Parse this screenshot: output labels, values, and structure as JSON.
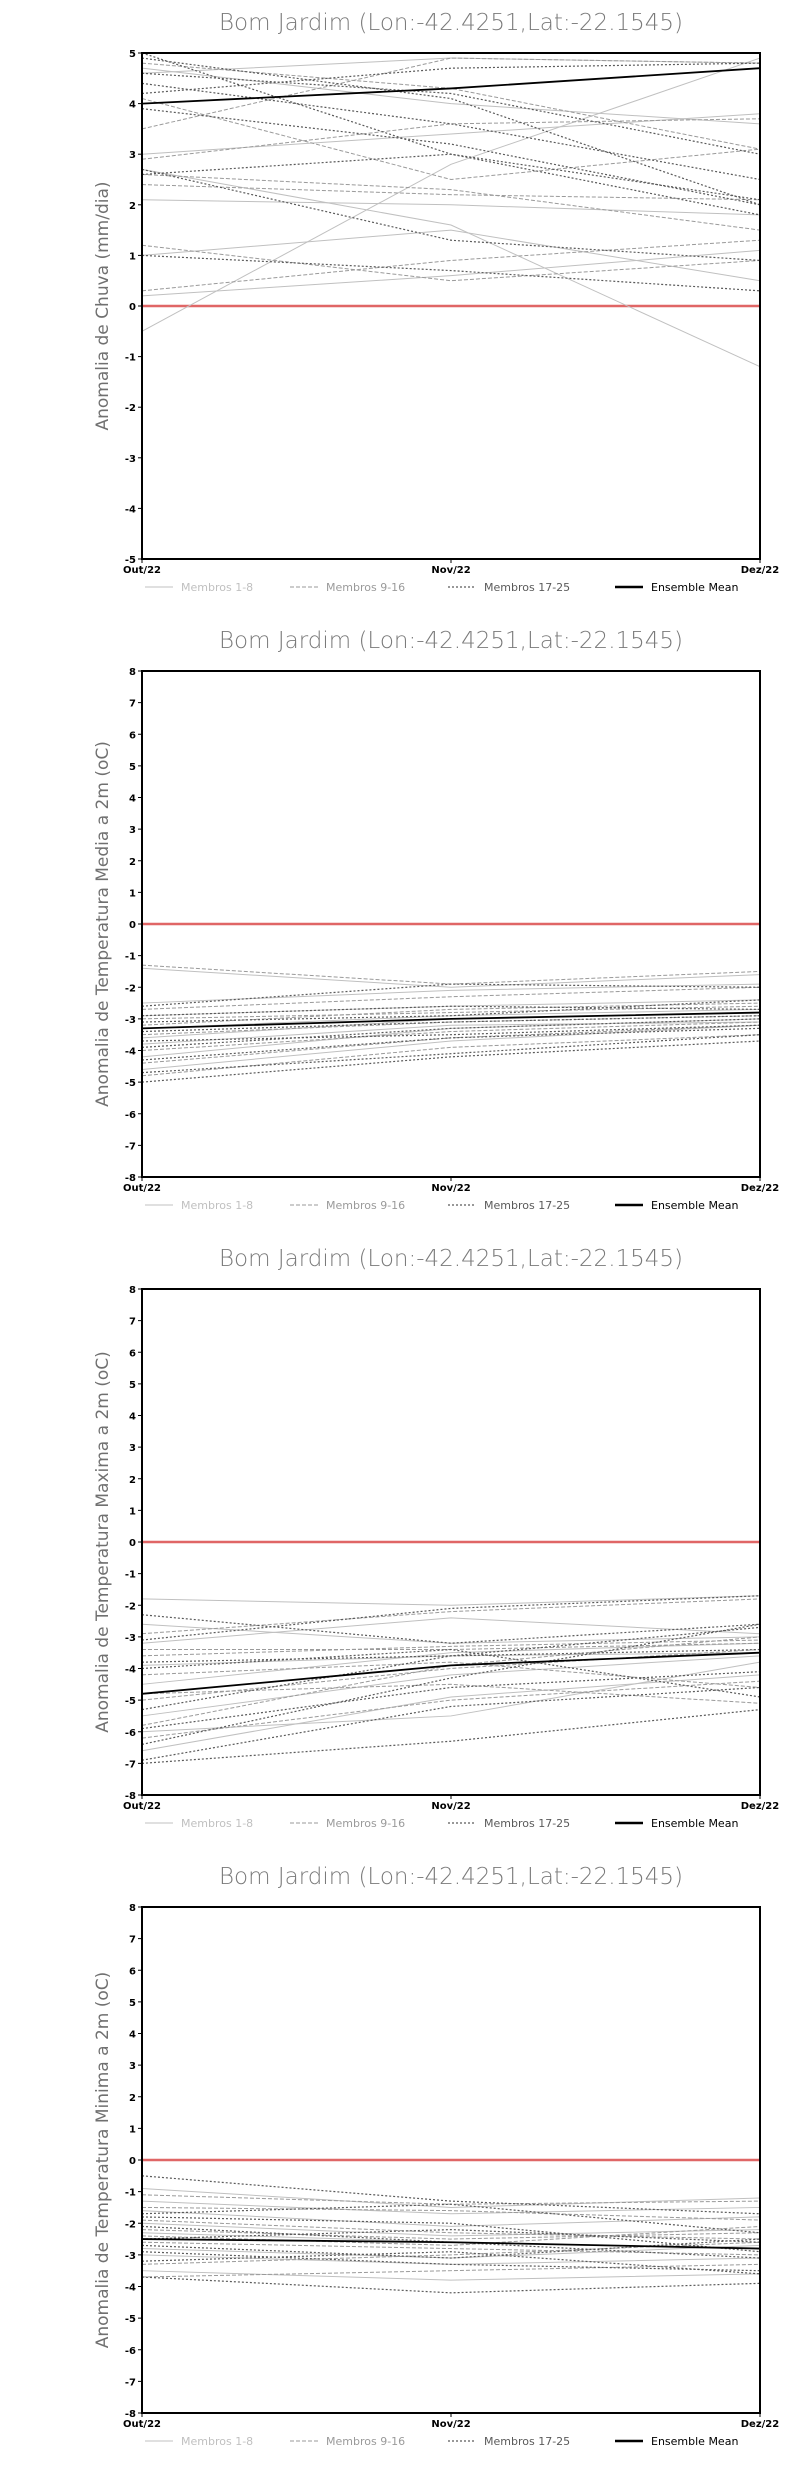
{
  "chart_data": [
    {
      "type": "line",
      "title": "Bom Jardim (Lon:-42.4251,Lat:-22.1545)",
      "ylabel": "Anomalia de Chuva (mm/dia)",
      "x": [
        "Out/22",
        "Nov/22",
        "Dez/22"
      ],
      "ylim": [
        -5,
        5
      ],
      "yticks": [
        -5,
        -4,
        -3,
        -2,
        -1,
        0,
        1,
        2,
        3,
        4,
        5
      ],
      "reference_line": 0,
      "legend": [
        "Membros 1-8",
        "Membros 9-16",
        "Membros 17-25",
        "Ensemble Mean"
      ],
      "series": [
        {
          "group": 0,
          "values": [
            0.2,
            0.6,
            1.1
          ]
        },
        {
          "group": 0,
          "values": [
            2.1,
            2.0,
            1.8
          ]
        },
        {
          "group": 0,
          "values": [
            -0.5,
            2.8,
            4.9
          ]
        },
        {
          "group": 0,
          "values": [
            4.7,
            4.0,
            3.6
          ]
        },
        {
          "group": 0,
          "values": [
            1.0,
            1.5,
            0.5
          ]
        },
        {
          "group": 0,
          "values": [
            2.7,
            1.6,
            -1.2
          ]
        },
        {
          "group": 0,
          "values": [
            4.6,
            4.9,
            4.8
          ]
        },
        {
          "group": 0,
          "values": [
            3.0,
            3.4,
            3.8
          ]
        },
        {
          "group": 1,
          "values": [
            2.4,
            2.2,
            2.1
          ]
        },
        {
          "group": 1,
          "values": [
            3.5,
            4.9,
            4.8
          ]
        },
        {
          "group": 1,
          "values": [
            1.2,
            0.5,
            0.9
          ]
        },
        {
          "group": 1,
          "values": [
            2.9,
            3.6,
            3.7
          ]
        },
        {
          "group": 1,
          "values": [
            4.8,
            4.3,
            3.1
          ]
        },
        {
          "group": 1,
          "values": [
            2.6,
            2.3,
            1.5
          ]
        },
        {
          "group": 1,
          "values": [
            0.3,
            0.9,
            1.3
          ]
        },
        {
          "group": 1,
          "values": [
            4.1,
            2.5,
            3.1
          ]
        },
        {
          "group": 2,
          "values": [
            4.9,
            4.1,
            2.0
          ]
        },
        {
          "group": 2,
          "values": [
            2.6,
            3.0,
            2.1
          ]
        },
        {
          "group": 2,
          "values": [
            1.0,
            0.7,
            0.3
          ]
        },
        {
          "group": 2,
          "values": [
            4.4,
            3.6,
            2.5
          ]
        },
        {
          "group": 2,
          "values": [
            5.0,
            3.0,
            1.8
          ]
        },
        {
          "group": 2,
          "values": [
            2.7,
            1.3,
            0.9
          ]
        },
        {
          "group": 2,
          "values": [
            3.9,
            3.2,
            2.0
          ]
        },
        {
          "group": 2,
          "values": [
            4.2,
            4.7,
            4.8
          ]
        },
        {
          "group": 2,
          "values": [
            4.6,
            4.2,
            3.0
          ]
        },
        {
          "group": 3,
          "values": [
            4.0,
            4.3,
            4.7
          ]
        }
      ]
    },
    {
      "type": "line",
      "title": "Bom Jardim (Lon:-42.4251,Lat:-22.1545)",
      "ylabel": "Anomalia de Temperatura Media a 2m (oC)",
      "x": [
        "Out/22",
        "Nov/22",
        "Dez/22"
      ],
      "ylim": [
        -8,
        8
      ],
      "yticks": [
        -8,
        -7,
        -6,
        -5,
        -4,
        -3,
        -2,
        -1,
        0,
        1,
        2,
        3,
        4,
        5,
        6,
        7,
        8
      ],
      "reference_line": 0,
      "legend": [
        "Membros 1-8",
        "Membros 9-16",
        "Membros 17-25",
        "Ensemble Mean"
      ],
      "series": [
        {
          "group": 0,
          "values": [
            -1.4,
            -2.0,
            -1.6
          ]
        },
        {
          "group": 0,
          "values": [
            -2.5,
            -2.1,
            -1.9
          ]
        },
        {
          "group": 0,
          "values": [
            -3.6,
            -3.0,
            -2.8
          ]
        },
        {
          "group": 0,
          "values": [
            -4.2,
            -3.3,
            -3.0
          ]
        },
        {
          "group": 0,
          "values": [
            -2.9,
            -2.6,
            -2.4
          ]
        },
        {
          "group": 0,
          "values": [
            -3.8,
            -3.2,
            -3.1
          ]
        },
        {
          "group": 0,
          "values": [
            -4.6,
            -3.7,
            -3.2
          ]
        },
        {
          "group": 0,
          "values": [
            -3.3,
            -2.9,
            -2.7
          ]
        },
        {
          "group": 1,
          "values": [
            -1.3,
            -1.9,
            -1.5
          ]
        },
        {
          "group": 1,
          "values": [
            -2.7,
            -2.3,
            -2.0
          ]
        },
        {
          "group": 1,
          "values": [
            -3.0,
            -2.8,
            -2.6
          ]
        },
        {
          "group": 1,
          "values": [
            -3.5,
            -3.1,
            -2.9
          ]
        },
        {
          "group": 1,
          "values": [
            -4.0,
            -3.4,
            -3.1
          ]
        },
        {
          "group": 1,
          "values": [
            -4.4,
            -3.6,
            -3.2
          ]
        },
        {
          "group": 1,
          "values": [
            -3.2,
            -2.7,
            -2.5
          ]
        },
        {
          "group": 1,
          "values": [
            -4.8,
            -3.9,
            -3.5
          ]
        },
        {
          "group": 2,
          "values": [
            -2.6,
            -1.9,
            -2.0
          ]
        },
        {
          "group": 2,
          "values": [
            -3.1,
            -2.9,
            -2.4
          ]
        },
        {
          "group": 2,
          "values": [
            -3.4,
            -3.1,
            -2.9
          ]
        },
        {
          "group": 2,
          "values": [
            -3.9,
            -3.3,
            -3.0
          ]
        },
        {
          "group": 2,
          "values": [
            -4.3,
            -3.6,
            -3.3
          ]
        },
        {
          "group": 2,
          "values": [
            -4.7,
            -4.1,
            -3.5
          ]
        },
        {
          "group": 2,
          "values": [
            -5.0,
            -4.2,
            -3.7
          ]
        },
        {
          "group": 2,
          "values": [
            -3.7,
            -3.5,
            -3.2
          ]
        },
        {
          "group": 2,
          "values": [
            -2.9,
            -2.6,
            -2.7
          ]
        },
        {
          "group": 3,
          "values": [
            -3.3,
            -3.0,
            -2.8
          ]
        }
      ]
    },
    {
      "type": "line",
      "title": "Bom Jardim (Lon:-42.4251,Lat:-22.1545)",
      "ylabel": "Anomalia de Temperatura Maxima a 2m (oC)",
      "x": [
        "Out/22",
        "Nov/22",
        "Dez/22"
      ],
      "ylim": [
        -8,
        8
      ],
      "yticks": [
        -8,
        -7,
        -6,
        -5,
        -4,
        -3,
        -2,
        -1,
        0,
        1,
        2,
        3,
        4,
        5,
        6,
        7,
        8
      ],
      "reference_line": 0,
      "legend": [
        "Membros 1-8",
        "Membros 9-16",
        "Membros 17-25",
        "Ensemble Mean"
      ],
      "series": [
        {
          "group": 0,
          "values": [
            -1.8,
            -2.0,
            -1.7
          ]
        },
        {
          "group": 0,
          "values": [
            -6.0,
            -5.5,
            -3.8
          ]
        },
        {
          "group": 0,
          "values": [
            -3.2,
            -2.4,
            -2.9
          ]
        },
        {
          "group": 0,
          "values": [
            -4.5,
            -3.5,
            -3.2
          ]
        },
        {
          "group": 0,
          "values": [
            -5.5,
            -4.2,
            -3.6
          ]
        },
        {
          "group": 0,
          "values": [
            -3.9,
            -3.6,
            -3.5
          ]
        },
        {
          "group": 0,
          "values": [
            -6.6,
            -4.9,
            -4.2
          ]
        },
        {
          "group": 0,
          "values": [
            -2.6,
            -3.2,
            -3.0
          ]
        },
        {
          "group": 1,
          "values": [
            -2.9,
            -2.2,
            -1.8
          ]
        },
        {
          "group": 1,
          "values": [
            -3.6,
            -3.3,
            -3.1
          ]
        },
        {
          "group": 1,
          "values": [
            -5.0,
            -4.0,
            -3.4
          ]
        },
        {
          "group": 1,
          "values": [
            -4.2,
            -3.8,
            -4.6
          ]
        },
        {
          "group": 1,
          "values": [
            -6.2,
            -5.0,
            -4.4
          ]
        },
        {
          "group": 1,
          "values": [
            -5.8,
            -3.9,
            -3.0
          ]
        },
        {
          "group": 1,
          "values": [
            -4.8,
            -4.5,
            -5.1
          ]
        },
        {
          "group": 1,
          "values": [
            -3.4,
            -3.4,
            -3.2
          ]
        },
        {
          "group": 2,
          "values": [
            -2.3,
            -3.2,
            -2.6
          ]
        },
        {
          "group": 2,
          "values": [
            -7.0,
            -6.3,
            -5.3
          ]
        },
        {
          "group": 2,
          "values": [
            -6.9,
            -5.2,
            -4.6
          ]
        },
        {
          "group": 2,
          "values": [
            -5.9,
            -4.6,
            -4.1
          ]
        },
        {
          "group": 2,
          "values": [
            -3.1,
            -2.1,
            -1.7
          ]
        },
        {
          "group": 2,
          "values": [
            -5.3,
            -3.6,
            -2.7
          ]
        },
        {
          "group": 2,
          "values": [
            -4.0,
            -3.4,
            -4.9
          ]
        },
        {
          "group": 2,
          "values": [
            -6.4,
            -4.3,
            -2.6
          ]
        },
        {
          "group": 2,
          "values": [
            -3.8,
            -3.6,
            -3.4
          ]
        },
        {
          "group": 3,
          "values": [
            -4.8,
            -3.9,
            -3.5
          ]
        }
      ]
    },
    {
      "type": "line",
      "title": "Bom Jardim (Lon:-42.4251,Lat:-22.1545)",
      "ylabel": "Anomalia de Temperatura Minima a 2m (oC)",
      "x": [
        "Out/22",
        "Nov/22",
        "Dez/22"
      ],
      "ylim": [
        -8,
        8
      ],
      "yticks": [
        -8,
        -7,
        -6,
        -5,
        -4,
        -3,
        -2,
        -1,
        0,
        1,
        2,
        3,
        4,
        5,
        6,
        7,
        8
      ],
      "reference_line": 0,
      "legend": [
        "Membros 1-8",
        "Membros 9-16",
        "Membros 17-25",
        "Ensemble Mean"
      ],
      "series": [
        {
          "group": 0,
          "values": [
            -0.9,
            -1.5,
            -1.2
          ]
        },
        {
          "group": 0,
          "values": [
            -1.6,
            -2.1,
            -1.8
          ]
        },
        {
          "group": 0,
          "values": [
            -2.0,
            -2.4,
            -2.2
          ]
        },
        {
          "group": 0,
          "values": [
            -2.8,
            -3.1,
            -2.7
          ]
        },
        {
          "group": 0,
          "values": [
            -3.5,
            -3.8,
            -3.6
          ]
        },
        {
          "group": 0,
          "values": [
            -2.3,
            -2.6,
            -2.8
          ]
        },
        {
          "group": 0,
          "values": [
            -1.3,
            -1.7,
            -1.5
          ]
        },
        {
          "group": 0,
          "values": [
            -3.0,
            -3.3,
            -3.1
          ]
        },
        {
          "group": 1,
          "values": [
            -1.5,
            -1.6,
            -1.9
          ]
        },
        {
          "group": 1,
          "values": [
            -2.2,
            -2.5,
            -2.3
          ]
        },
        {
          "group": 1,
          "values": [
            -2.6,
            -2.8,
            -3.0
          ]
        },
        {
          "group": 1,
          "values": [
            -3.3,
            -3.0,
            -2.6
          ]
        },
        {
          "group": 1,
          "values": [
            -1.9,
            -2.3,
            -2.5
          ]
        },
        {
          "group": 1,
          "values": [
            -3.7,
            -3.5,
            -3.3
          ]
        },
        {
          "group": 1,
          "values": [
            -2.4,
            -2.7,
            -2.1
          ]
        },
        {
          "group": 1,
          "values": [
            -1.1,
            -1.4,
            -1.3
          ]
        },
        {
          "group": 2,
          "values": [
            -0.5,
            -1.3,
            -1.7
          ]
        },
        {
          "group": 2,
          "values": [
            -1.7,
            -1.4,
            -2.3
          ]
        },
        {
          "group": 2,
          "values": [
            -2.1,
            -2.6,
            -3.1
          ]
        },
        {
          "group": 2,
          "values": [
            -2.9,
            -3.3,
            -3.5
          ]
        },
        {
          "group": 2,
          "values": [
            -3.7,
            -4.2,
            -3.9
          ]
        },
        {
          "group": 2,
          "values": [
            -2.5,
            -2.2,
            -2.6
          ]
        },
        {
          "group": 2,
          "values": [
            -3.2,
            -2.9,
            -3.6
          ]
        },
        {
          "group": 2,
          "values": [
            -1.8,
            -2.0,
            -2.9
          ]
        },
        {
          "group": 2,
          "values": [
            -2.7,
            -3.1,
            -2.5
          ]
        },
        {
          "group": 3,
          "values": [
            -2.5,
            -2.6,
            -2.8
          ]
        }
      ]
    }
  ],
  "styles": {
    "group_colors": [
      "#c0c0c0",
      "#9a9a9a",
      "#5a5a5a",
      "#000000"
    ],
    "reference_color": "#e06666",
    "axis_color": "#000000"
  }
}
